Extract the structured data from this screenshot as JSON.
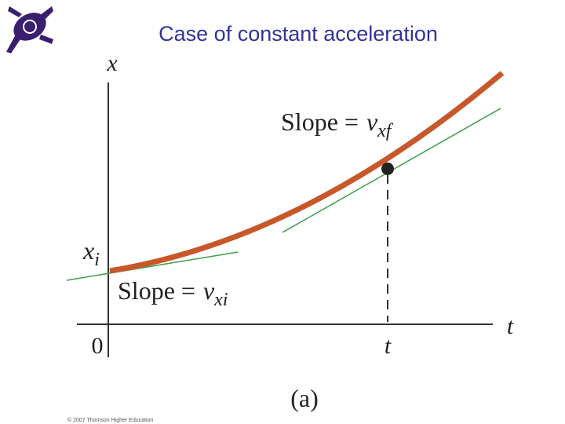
{
  "header": {
    "title": "Case of constant acceleration"
  },
  "diagram": {
    "y_axis_label": "x",
    "x_axis_label": "t",
    "origin_label": "0",
    "initial_position": {
      "symbol": "x",
      "subscript": "i"
    },
    "time_marker": "t",
    "slope_final": {
      "text": "Slope =",
      "symbol": "v",
      "subscript": "xf"
    },
    "slope_initial": {
      "text": "Slope =",
      "symbol": "v",
      "subscript": "xi"
    },
    "caption": "(a)"
  },
  "footer": {
    "copyright": "© 2007 Thomson Higher Education"
  }
}
